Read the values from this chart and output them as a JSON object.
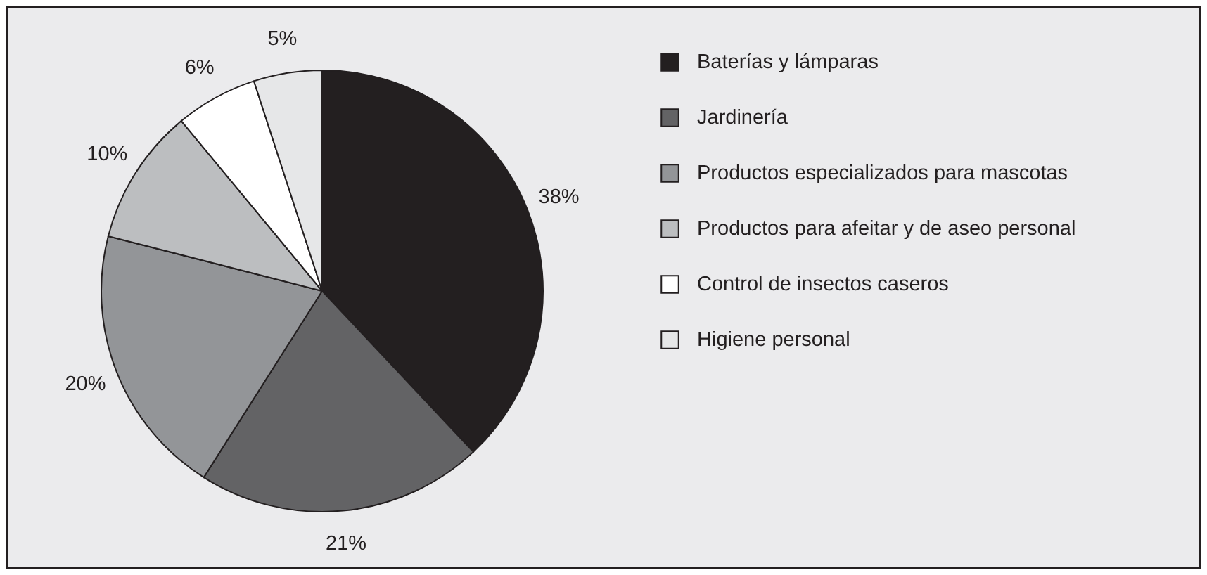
{
  "chart_data": {
    "type": "pie",
    "categories": [
      "Baterías y lámparas",
      "Jardinería",
      "Productos especializados para mascotas",
      "Productos para afeitar y de aseo personal",
      "Control de insectos caseros",
      "Higiene personal"
    ],
    "values": [
      38,
      21,
      20,
      10,
      6,
      5
    ],
    "value_labels": [
      "38%",
      "21%",
      "20%",
      "10%",
      "6%",
      "5%"
    ],
    "colors": [
      "#231f20",
      "#636365",
      "#939598",
      "#bcbec0",
      "#ffffff",
      "#e6e7e8"
    ],
    "legend": "right"
  }
}
